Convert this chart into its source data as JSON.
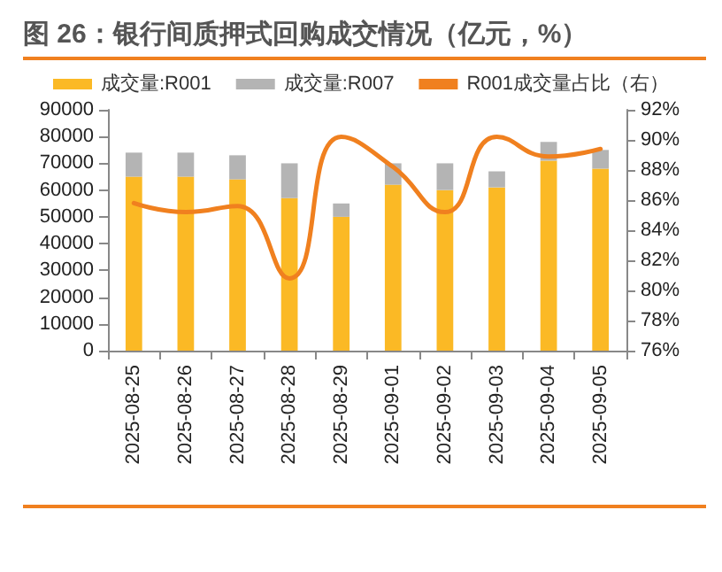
{
  "chart_data": {
    "type": "bar",
    "title": "图 26：银行间质押式回购成交情况（亿元，%）",
    "categories": [
      "2025-08-25",
      "2025-08-26",
      "2025-08-27",
      "2025-08-28",
      "2025-08-29",
      "2025-09-01",
      "2025-09-02",
      "2025-09-03",
      "2025-09-04",
      "2025-09-05"
    ],
    "stacked": true,
    "series": [
      {
        "name": "成交量:R001",
        "type": "bar",
        "color": "#fbb925",
        "values": [
          65000,
          65000,
          64000,
          57000,
          50000,
          62000,
          60000,
          61000,
          71000,
          68000
        ]
      },
      {
        "name": "成交量:R007",
        "type": "bar",
        "color": "#b4b4b4",
        "values": [
          9000,
          9000,
          9000,
          13000,
          5000,
          8000,
          10000,
          6000,
          7000,
          7000
        ]
      },
      {
        "name": "R001成交量占比（右）",
        "type": "line",
        "axis": "y2",
        "color": "#f0801f",
        "values": [
          85.8,
          85.2,
          85.6,
          80.8,
          90.2,
          88.2,
          85.2,
          90.2,
          88.9,
          89.4
        ]
      }
    ],
    "ylim": [
      0,
      90000
    ],
    "yticks": [
      0,
      10000,
      20000,
      30000,
      40000,
      50000,
      60000,
      70000,
      80000,
      90000
    ],
    "y2lim": [
      76,
      92
    ],
    "y2ticks": [
      {
        "value": 76,
        "label": "76%"
      },
      {
        "value": 78,
        "label": "78%"
      },
      {
        "value": 80,
        "label": "80%"
      },
      {
        "value": 82,
        "label": "82%"
      },
      {
        "value": 84,
        "label": "84%"
      },
      {
        "value": 86,
        "label": "86%"
      },
      {
        "value": 88,
        "label": "88%"
      },
      {
        "value": 90,
        "label": "90%"
      },
      {
        "value": 92,
        "label": "92%"
      }
    ],
    "grid": false,
    "legend": "top",
    "marker": "none",
    "line_style": "solid"
  }
}
